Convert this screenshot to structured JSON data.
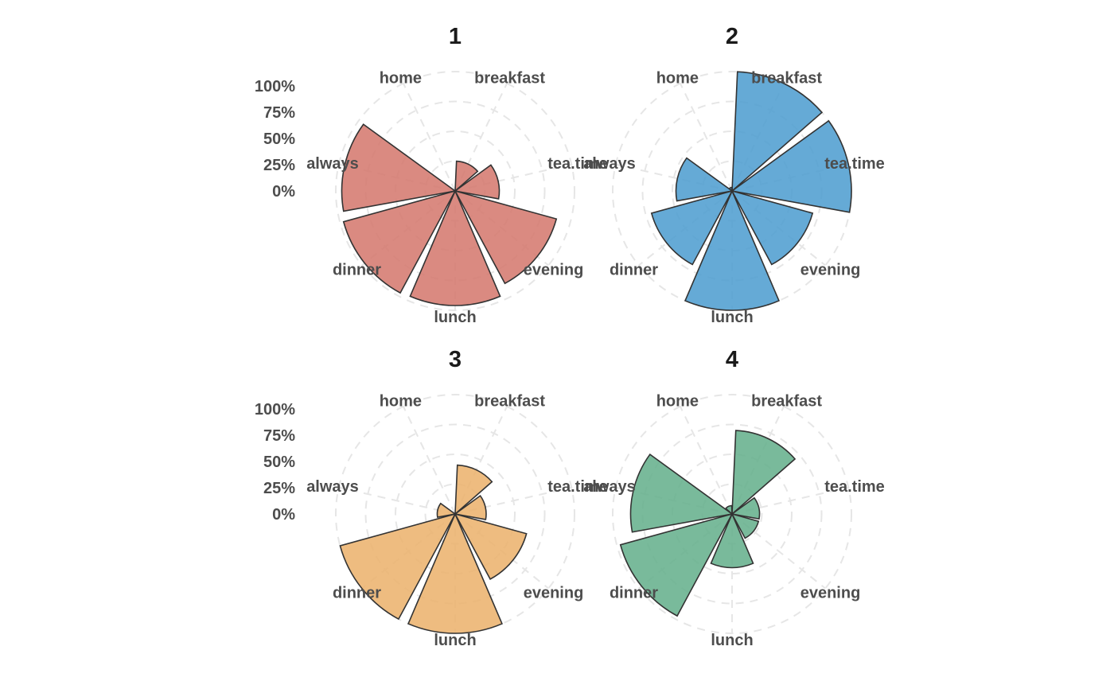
{
  "chart_data": {
    "type": "polar-bar",
    "title": "",
    "xlabel": "",
    "ylabel": "",
    "categories": [
      "breakfast",
      "tea.time",
      "evening",
      "lunch",
      "dinner",
      "always",
      "home"
    ],
    "tick_labels": [
      "0%",
      "25%",
      "50%",
      "75%",
      "100%"
    ],
    "ylim": [
      0,
      100
    ],
    "grid": true,
    "panels": [
      {
        "name": "1",
        "color": "#d4766b",
        "values": [
          25,
          37,
          88,
          96,
          97,
          95,
          0
        ]
      },
      {
        "name": "2",
        "color": "#4a9bcf",
        "values": [
          100,
          100,
          70,
          100,
          70,
          47,
          3
        ]
      },
      {
        "name": "3",
        "color": "#ebb06a",
        "values": [
          41,
          26,
          62,
          100,
          100,
          15,
          0
        ]
      },
      {
        "name": "4",
        "color": "#61ae8a",
        "values": [
          70,
          23,
          23,
          45,
          97,
          85,
          7
        ]
      }
    ]
  }
}
